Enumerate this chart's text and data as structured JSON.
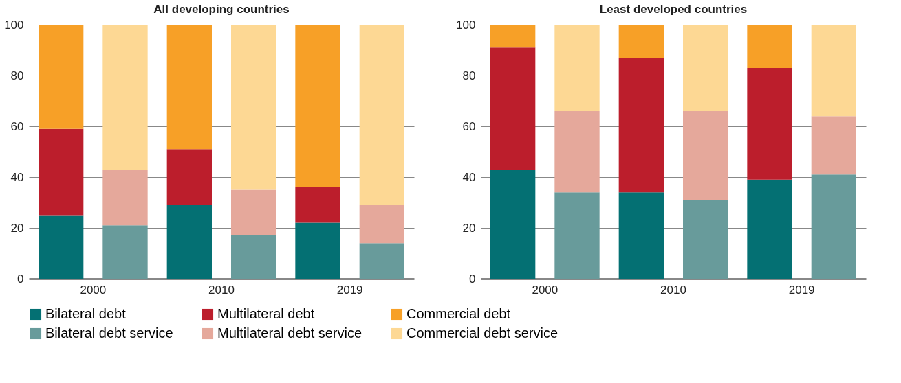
{
  "chart_data": [
    {
      "type": "bar",
      "title": "All developing countries",
      "stacked": true,
      "categories": [
        "2000",
        null,
        "2010",
        null,
        "2019",
        null
      ],
      "ylim": [
        0,
        100
      ],
      "yticks": [
        0,
        20,
        40,
        60,
        80,
        100
      ],
      "grid": "y",
      "legend": "bottom",
      "series": [
        {
          "name": "Bilateral debt",
          "color": "#047073",
          "values": [
            25,
            null,
            29,
            null,
            22,
            null
          ]
        },
        {
          "name": "Multilateral debt",
          "color": "#bc1e2c",
          "values": [
            34,
            null,
            22,
            null,
            14,
            null
          ]
        },
        {
          "name": "Commercial debt",
          "color": "#f7a027",
          "values": [
            41,
            null,
            49,
            null,
            64,
            null
          ]
        },
        {
          "name": "Bilateral debt service",
          "color": "#689b9b",
          "values": [
            null,
            21,
            null,
            17,
            null,
            14
          ]
        },
        {
          "name": "Multilateral debt service",
          "color": "#e5a89b",
          "values": [
            null,
            22,
            null,
            18,
            null,
            15
          ]
        },
        {
          "name": "Commercial debt service",
          "color": "#fdd894",
          "values": [
            null,
            57,
            null,
            65,
            null,
            71
          ]
        }
      ]
    },
    {
      "type": "bar",
      "title": "Least developed countries",
      "stacked": true,
      "categories": [
        "2000",
        null,
        "2010",
        null,
        "2019",
        null
      ],
      "ylim": [
        0,
        100
      ],
      "yticks": [
        0,
        20,
        40,
        60,
        80,
        100
      ],
      "grid": "y",
      "legend": "bottom",
      "series": [
        {
          "name": "Bilateral debt",
          "color": "#047073",
          "values": [
            43,
            null,
            34,
            null,
            39,
            null
          ]
        },
        {
          "name": "Multilateral debt",
          "color": "#bc1e2c",
          "values": [
            48,
            null,
            53,
            null,
            44,
            null
          ]
        },
        {
          "name": "Commercial debt",
          "color": "#f7a027",
          "values": [
            9,
            null,
            13,
            null,
            17,
            null
          ]
        },
        {
          "name": "Bilateral debt service",
          "color": "#689b9b",
          "values": [
            null,
            34,
            null,
            31,
            null,
            41
          ]
        },
        {
          "name": "Multilateral debt service",
          "color": "#e5a89b",
          "values": [
            null,
            32,
            null,
            35,
            null,
            23
          ]
        },
        {
          "name": "Commercial debt service",
          "color": "#fdd894",
          "values": [
            null,
            34,
            null,
            34,
            null,
            36
          ]
        }
      ]
    }
  ]
}
